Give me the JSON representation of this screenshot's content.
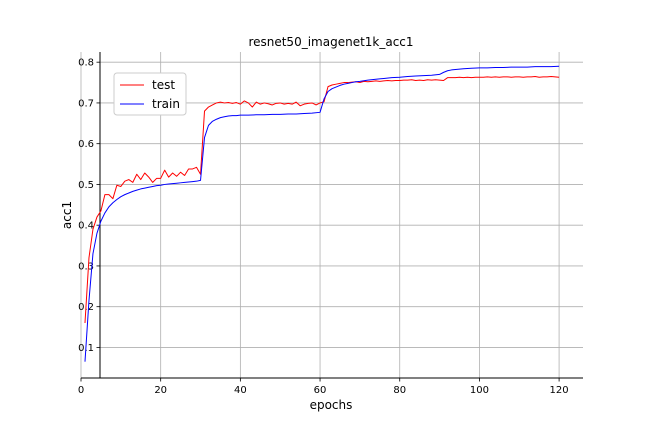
{
  "chart_data": {
    "type": "line",
    "title": "resnet50_imagenet1k_acc1",
    "xlabel": "epochs",
    "ylabel": "acc1",
    "xlim": [
      0,
      126
    ],
    "ylim": [
      0.025,
      0.825
    ],
    "xticks": [
      0,
      20,
      40,
      60,
      80,
      100,
      120
    ],
    "yticks": [
      0.1,
      0.2,
      0.3,
      0.4,
      0.5,
      0.6,
      0.7,
      0.8
    ],
    "xtick_labels": [
      "0",
      "20",
      "40",
      "60",
      "80",
      "100",
      "120"
    ],
    "ytick_labels": [
      "0.1",
      "0.2",
      "0.3",
      "0.4",
      "0.5",
      "0.6",
      "0.7",
      "0.8"
    ],
    "grid": true,
    "legend_position": "upper-left",
    "series": [
      {
        "name": "test",
        "color": "#ff0000",
        "x": [
          1,
          2,
          3,
          4,
          5,
          6,
          7,
          8,
          9,
          10,
          11,
          12,
          13,
          14,
          15,
          16,
          17,
          18,
          19,
          20,
          21,
          22,
          23,
          24,
          25,
          26,
          27,
          28,
          29,
          30,
          31,
          32,
          33,
          34,
          35,
          36,
          37,
          38,
          39,
          40,
          41,
          42,
          43,
          44,
          45,
          46,
          47,
          48,
          49,
          50,
          51,
          52,
          53,
          54,
          55,
          56,
          57,
          58,
          59,
          60,
          61,
          62,
          63,
          64,
          65,
          66,
          67,
          68,
          69,
          70,
          71,
          72,
          73,
          74,
          75,
          76,
          77,
          78,
          79,
          80,
          81,
          82,
          83,
          84,
          85,
          86,
          87,
          88,
          89,
          90,
          91,
          92,
          93,
          94,
          95,
          96,
          97,
          98,
          99,
          100,
          101,
          102,
          103,
          104,
          105,
          106,
          107,
          108,
          109,
          110,
          111,
          112,
          113,
          114,
          115,
          116,
          117,
          118,
          119,
          120
        ],
        "y": [
          0.16,
          0.32,
          0.39,
          0.42,
          0.435,
          0.475,
          0.475,
          0.465,
          0.498,
          0.495,
          0.508,
          0.512,
          0.505,
          0.525,
          0.512,
          0.528,
          0.518,
          0.505,
          0.515,
          0.515,
          0.535,
          0.518,
          0.528,
          0.52,
          0.53,
          0.522,
          0.538,
          0.538,
          0.542,
          0.525,
          0.68,
          0.69,
          0.695,
          0.7,
          0.702,
          0.7,
          0.701,
          0.699,
          0.701,
          0.697,
          0.705,
          0.7,
          0.69,
          0.702,
          0.697,
          0.7,
          0.698,
          0.695,
          0.699,
          0.7,
          0.697,
          0.699,
          0.697,
          0.702,
          0.693,
          0.697,
          0.699,
          0.7,
          0.695,
          0.7,
          0.703,
          0.74,
          0.744,
          0.746,
          0.748,
          0.75,
          0.75,
          0.751,
          0.752,
          0.75,
          0.753,
          0.752,
          0.753,
          0.754,
          0.753,
          0.754,
          0.755,
          0.754,
          0.755,
          0.755,
          0.756,
          0.756,
          0.757,
          0.755,
          0.756,
          0.755,
          0.757,
          0.756,
          0.757,
          0.756,
          0.755,
          0.762,
          0.762,
          0.762,
          0.763,
          0.762,
          0.763,
          0.762,
          0.763,
          0.763,
          0.763,
          0.764,
          0.763,
          0.764,
          0.763,
          0.764,
          0.764,
          0.763,
          0.764,
          0.764,
          0.763,
          0.764,
          0.764,
          0.765,
          0.763,
          0.764,
          0.764,
          0.765,
          0.764,
          0.763
        ]
      },
      {
        "name": "train",
        "color": "#0000ff",
        "x": [
          1,
          2,
          3,
          4,
          5,
          6,
          7,
          8,
          9,
          10,
          11,
          12,
          13,
          14,
          15,
          16,
          17,
          18,
          19,
          20,
          21,
          22,
          23,
          24,
          25,
          26,
          27,
          28,
          29,
          30,
          31,
          32,
          33,
          34,
          35,
          36,
          37,
          38,
          39,
          40,
          42,
          44,
          46,
          48,
          50,
          52,
          54,
          56,
          58,
          60,
          61,
          62,
          63,
          64,
          65,
          66,
          67,
          68,
          69,
          70,
          72,
          74,
          76,
          78,
          80,
          82,
          84,
          86,
          88,
          90,
          91,
          92,
          93,
          94,
          95,
          96,
          98,
          100,
          102,
          104,
          106,
          108,
          110,
          112,
          114,
          116,
          118,
          120
        ],
        "y": [
          0.065,
          0.215,
          0.33,
          0.38,
          0.41,
          0.43,
          0.445,
          0.455,
          0.463,
          0.47,
          0.475,
          0.479,
          0.483,
          0.486,
          0.489,
          0.491,
          0.493,
          0.495,
          0.497,
          0.498,
          0.5,
          0.501,
          0.502,
          0.503,
          0.504,
          0.505,
          0.506,
          0.507,
          0.508,
          0.51,
          0.615,
          0.645,
          0.655,
          0.66,
          0.664,
          0.666,
          0.668,
          0.669,
          0.669,
          0.67,
          0.67,
          0.671,
          0.671,
          0.672,
          0.672,
          0.673,
          0.673,
          0.674,
          0.675,
          0.677,
          0.71,
          0.728,
          0.735,
          0.739,
          0.743,
          0.746,
          0.748,
          0.75,
          0.752,
          0.753,
          0.756,
          0.758,
          0.76,
          0.762,
          0.763,
          0.765,
          0.766,
          0.767,
          0.768,
          0.77,
          0.775,
          0.779,
          0.781,
          0.782,
          0.783,
          0.784,
          0.785,
          0.786,
          0.786,
          0.787,
          0.787,
          0.788,
          0.788,
          0.788,
          0.789,
          0.789,
          0.789,
          0.79
        ]
      }
    ]
  }
}
